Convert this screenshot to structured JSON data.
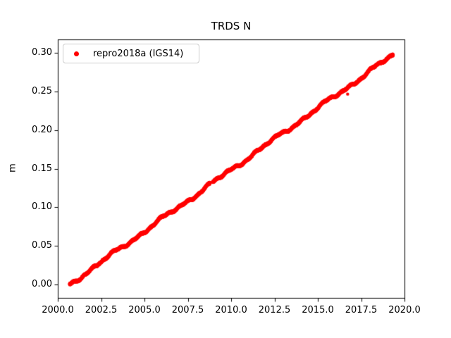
{
  "figure": {
    "background_color": "#ffffff",
    "frame_color": "#000000",
    "text_color": "#000000"
  },
  "legend": {
    "position": "upper left",
    "border_color": "#cccccc",
    "items": [
      {
        "label": "repro2018a (IGS14)",
        "marker": "red-dot-icon",
        "marker_color": "#ff0000"
      }
    ]
  },
  "chart_data": {
    "type": "scatter",
    "title": "TRDS N",
    "xlabel": "",
    "ylabel": "m",
    "grid": false,
    "legend_position": "upper left",
    "xlim": [
      2000.0,
      2020.0
    ],
    "ylim": [
      -0.0173,
      0.3173
    ],
    "x_ticks": [
      2000.0,
      2002.5,
      2005.0,
      2007.5,
      2010.0,
      2012.5,
      2015.0,
      2017.5,
      2020.0
    ],
    "x_tick_labels": [
      "2000.0",
      "2002.5",
      "2005.0",
      "2007.5",
      "2010.0",
      "2012.5",
      "2015.0",
      "2017.5",
      "2020.0"
    ],
    "y_ticks": [
      0.0,
      0.05,
      0.1,
      0.15,
      0.2,
      0.25,
      0.3
    ],
    "y_tick_labels": [
      "0.00",
      "0.05",
      "0.10",
      "0.15",
      "0.20",
      "0.25",
      "0.30"
    ],
    "series": [
      {
        "name": "repro2018a (IGS14)",
        "color": "#ff0000",
        "marker": "dot",
        "marker_radius_px": 2.2,
        "x_start": 2000.68,
        "x_end": 2019.35,
        "y_start": 0.0,
        "y_end": 0.2975,
        "points_per_year": 365,
        "noise_amplitude_m": 0.0013,
        "wiggles": [
          {
            "amp": 0.0017,
            "period": 3.1,
            "phase": 0.7
          },
          {
            "amp": 0.0012,
            "period": 1.35,
            "phase": 2.1
          },
          {
            "amp": 0.0008,
            "period": 0.55,
            "phase": 1.1
          }
        ],
        "gaps": [
          [
            2008.78,
            2008.94
          ],
          [
            2016.9,
            2016.97
          ]
        ],
        "outliers": [
          [
            2016.72,
            0.2465
          ]
        ],
        "seed": 42
      }
    ]
  }
}
